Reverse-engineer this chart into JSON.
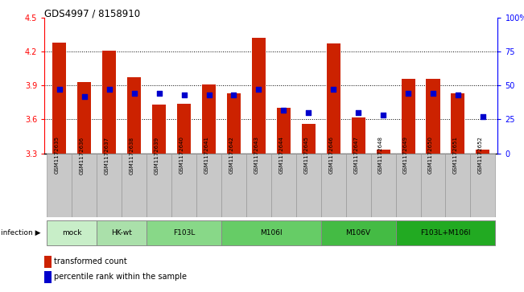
{
  "title": "GDS4997 / 8158910",
  "samples": [
    "GSM1172635",
    "GSM1172636",
    "GSM1172637",
    "GSM1172638",
    "GSM1172639",
    "GSM1172640",
    "GSM1172641",
    "GSM1172642",
    "GSM1172643",
    "GSM1172644",
    "GSM1172645",
    "GSM1172646",
    "GSM1172647",
    "GSM1172648",
    "GSM1172649",
    "GSM1172650",
    "GSM1172651",
    "GSM1172652"
  ],
  "bar_values": [
    4.28,
    3.93,
    4.21,
    3.97,
    3.73,
    3.74,
    3.91,
    3.83,
    4.32,
    3.7,
    3.56,
    4.27,
    3.62,
    3.33,
    3.96,
    3.96,
    3.83,
    3.33
  ],
  "percentile_values": [
    47,
    42,
    47,
    44,
    44,
    43,
    43,
    43,
    47,
    32,
    30,
    47,
    30,
    28,
    44,
    44,
    43,
    27
  ],
  "groups": [
    {
      "label": "mock",
      "start": 0,
      "end": 2,
      "color": "#c8eec8"
    },
    {
      "label": "HK-wt",
      "start": 2,
      "end": 4,
      "color": "#aae0aa"
    },
    {
      "label": "F103L",
      "start": 4,
      "end": 7,
      "color": "#88d888"
    },
    {
      "label": "M106I",
      "start": 7,
      "end": 11,
      "color": "#66cc66"
    },
    {
      "label": "M106V",
      "start": 11,
      "end": 14,
      "color": "#44bb44"
    },
    {
      "label": "F103L+M106I",
      "start": 14,
      "end": 18,
      "color": "#22aa22"
    }
  ],
  "ylim_left": [
    3.3,
    4.5
  ],
  "ylim_right": [
    0,
    100
  ],
  "yticks_left": [
    3.3,
    3.6,
    3.9,
    4.2,
    4.5
  ],
  "yticks_right": [
    0,
    25,
    50,
    75,
    100
  ],
  "bar_color": "#cc2200",
  "dot_color": "#0000cc",
  "bar_width": 0.55,
  "grid_yticks": [
    3.6,
    3.9,
    4.2
  ],
  "infection_label": "infection",
  "legend_red": "transformed count",
  "legend_blue": "percentile rank within the sample",
  "label_box_color": "#c8c8c8",
  "label_box_edge": "#999999"
}
